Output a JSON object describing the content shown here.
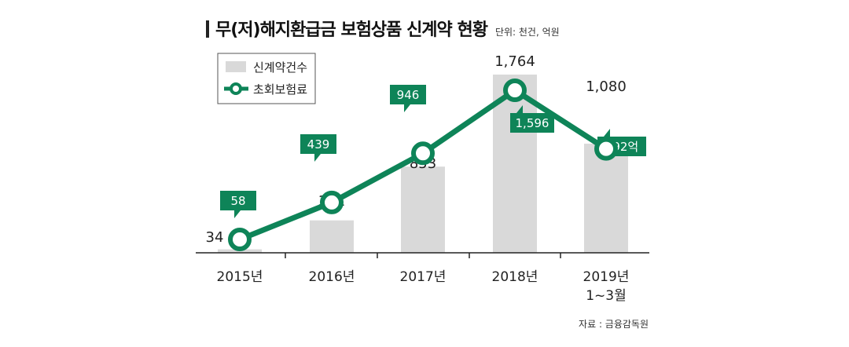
{
  "title": "무(저)해지환급금 보험상품 신계약 현황",
  "unit": "단위: 천건, 억원",
  "source": "자료 : 금융감독원",
  "colors": {
    "bar": "#d9d9d9",
    "line": "#0e8458",
    "text": "#222222"
  },
  "chart_data": {
    "type": "bar+line",
    "categories": [
      "2015년",
      "2016년",
      "2017년",
      "2018년",
      "2019년\n1~3월"
    ],
    "series": [
      {
        "name": "신계약건수",
        "type": "bar",
        "values": [
          34,
          321,
          853,
          1764,
          1080
        ],
        "labels": [
          "34",
          "321",
          "853",
          "1,764",
          "1,080"
        ]
      },
      {
        "name": "초회보험료",
        "type": "line",
        "values": [
          58,
          439,
          946,
          1596,
          992
        ],
        "labels": [
          "58",
          "439",
          "946",
          "1,596",
          "992억"
        ]
      }
    ],
    "legend": [
      "신계약건수",
      "초회보험료"
    ],
    "legend_position": "top-left",
    "grid": false
  }
}
